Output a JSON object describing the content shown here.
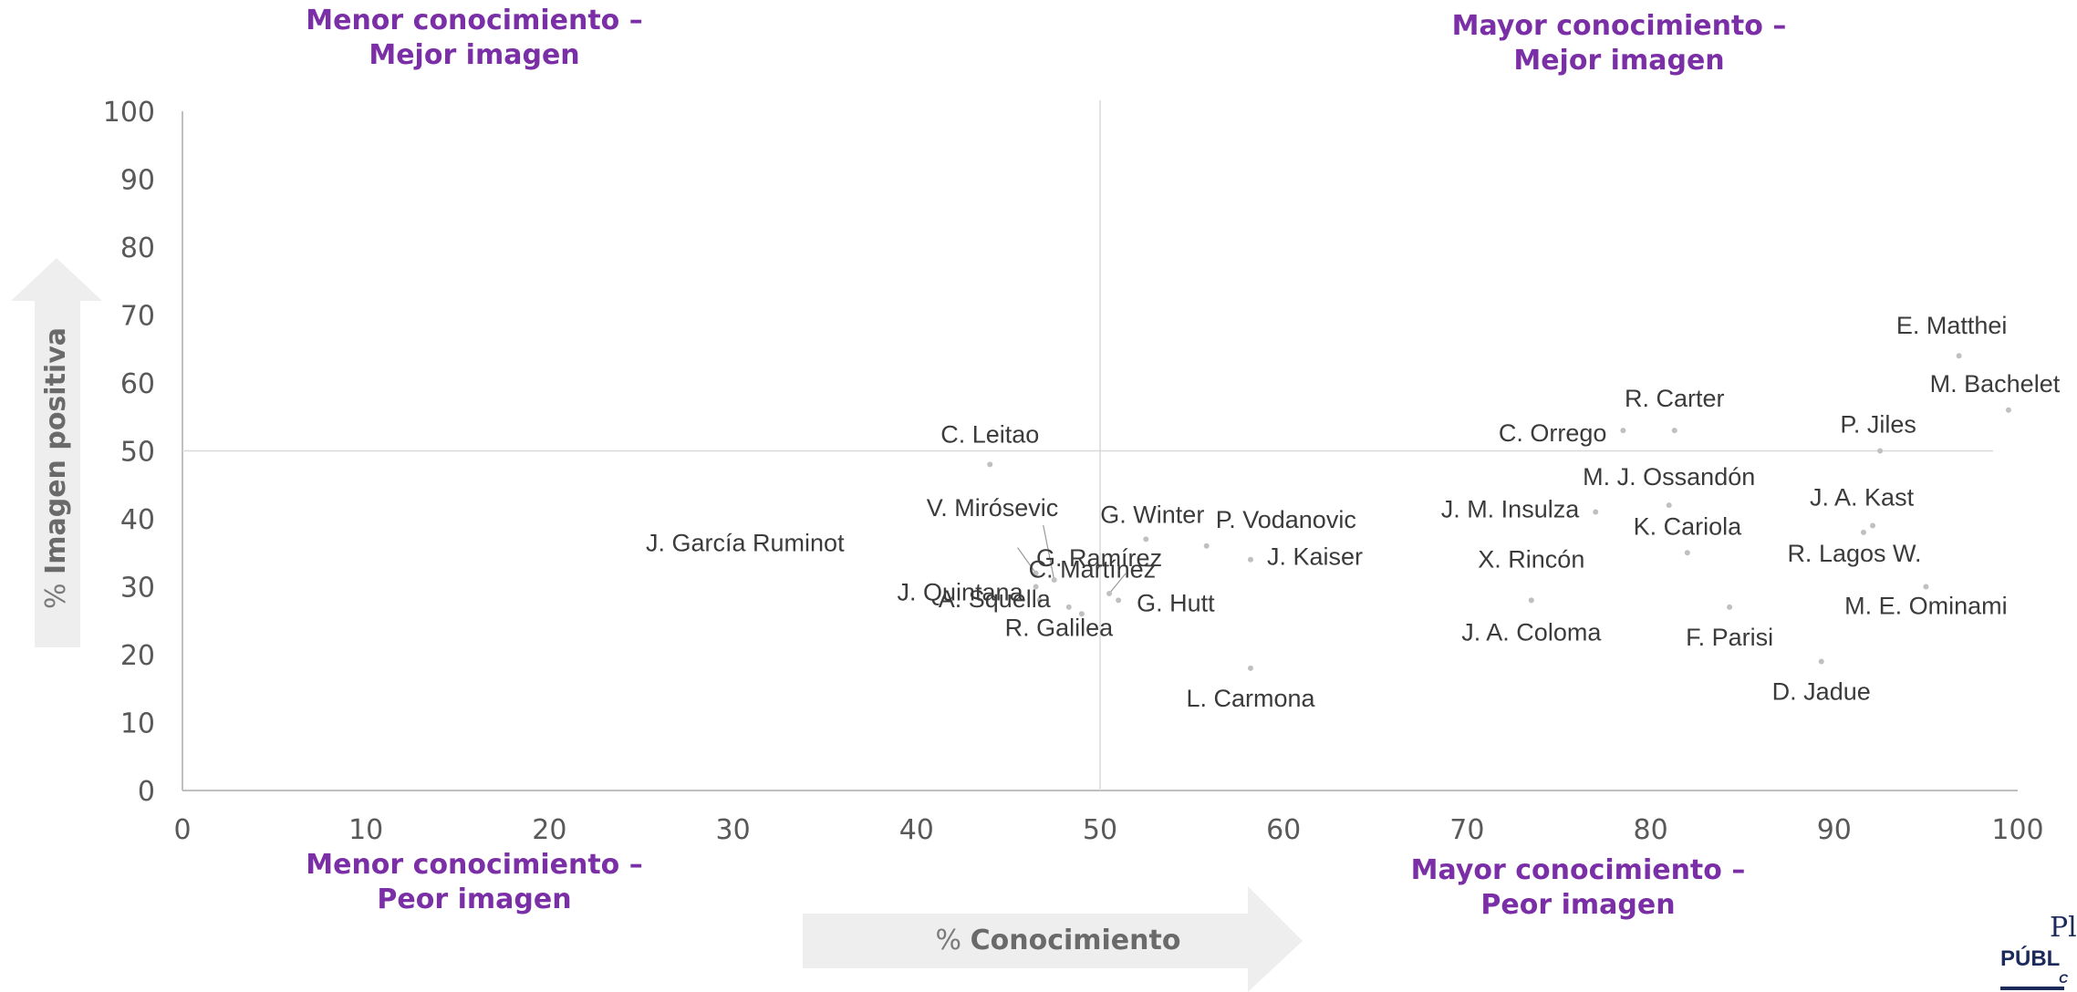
{
  "colors": {
    "quadrant_label": "#7b2fa6",
    "point": "#c0c0c0",
    "axis": "#bfbfbf",
    "tick_text": "#595959",
    "name_text": "#3b3b3b",
    "arrow_fill": "#eeeeee",
    "logo": "#1b2a5a"
  },
  "quadrants": {
    "top_left": [
      "Menor conocimiento –",
      "Mejor imagen"
    ],
    "top_right": [
      "Mayor conocimiento –",
      "Mejor imagen"
    ],
    "bottom_left": [
      "Menor conocimiento –",
      "Peor imagen"
    ],
    "bottom_right": [
      "Mayor conocimiento –",
      "Peor imagen"
    ]
  },
  "x_arrow": {
    "prefix": "%",
    "label": "Conocimiento"
  },
  "y_arrow": {
    "prefix": "%",
    "label": "Imagen positiva"
  },
  "logo": {
    "line1": "Pl",
    "line2": "PÚBL",
    "line3": "C"
  },
  "chart_data": {
    "type": "scatter",
    "title": "",
    "xlabel": "% Conocimiento",
    "ylabel": "% Imagen positiva",
    "xlim": [
      0,
      100
    ],
    "ylim": [
      0,
      100
    ],
    "x_ticks": [
      0,
      10,
      20,
      30,
      40,
      50,
      60,
      70,
      80,
      90,
      100
    ],
    "y_ticks": [
      0,
      10,
      20,
      30,
      40,
      50,
      60,
      70,
      80,
      90,
      100
    ],
    "reference_lines": {
      "x": 50,
      "y": 50
    },
    "grid": false,
    "points": [
      {
        "label": "C. Leitao",
        "x": 44,
        "y": 48
      },
      {
        "label": "V. Mirósevic",
        "x": 47.5,
        "y": 31
      },
      {
        "label": "G. Winter",
        "x": 52.5,
        "y": 37
      },
      {
        "label": "J. García Ruminot",
        "x": 46.5,
        "y": 32
      },
      {
        "label": "C. Martínez",
        "x": 46.5,
        "y": 30
      },
      {
        "label": "G. Ramírez",
        "x": 50.5,
        "y": 29
      },
      {
        "label": "J. Quintana",
        "x": 46.7,
        "y": 28
      },
      {
        "label": "A. Squella",
        "x": 48.3,
        "y": 27
      },
      {
        "label": "R. Galilea",
        "x": 49,
        "y": 26
      },
      {
        "label": "G. Hutt",
        "x": 51,
        "y": 28
      },
      {
        "label": "P. Vodanovic",
        "x": 55.8,
        "y": 36
      },
      {
        "label": "J. Kaiser",
        "x": 58.2,
        "y": 34
      },
      {
        "label": "L. Carmona",
        "x": 58.2,
        "y": 18
      },
      {
        "label": "C. Orrego",
        "x": 78.5,
        "y": 53
      },
      {
        "label": "R. Carter",
        "x": 81.3,
        "y": 53
      },
      {
        "label": "M. J. Ossandón",
        "x": 81,
        "y": 42
      },
      {
        "label": "J. M. Insulza",
        "x": 77,
        "y": 41
      },
      {
        "label": "K. Cariola",
        "x": 82,
        "y": 35
      },
      {
        "label": "X. Rincón",
        "x": 73.5,
        "y": 28
      },
      {
        "label": "J. A. Coloma",
        "x": 73.5,
        "y": 28
      },
      {
        "label": "F. Parisi",
        "x": 84.3,
        "y": 27
      },
      {
        "label": "D. Jadue",
        "x": 89.3,
        "y": 19
      },
      {
        "label": "E. Matthei",
        "x": 96.8,
        "y": 64
      },
      {
        "label": "M. Bachelet",
        "x": 99.5,
        "y": 56
      },
      {
        "label": "P. Jiles",
        "x": 92.5,
        "y": 50
      },
      {
        "label": "J. A. Kast",
        "x": 92.1,
        "y": 39
      },
      {
        "label": "R. Lagos W.",
        "x": 91.6,
        "y": 38
      },
      {
        "label": "M. E. Ominami",
        "x": 95,
        "y": 30
      }
    ]
  }
}
